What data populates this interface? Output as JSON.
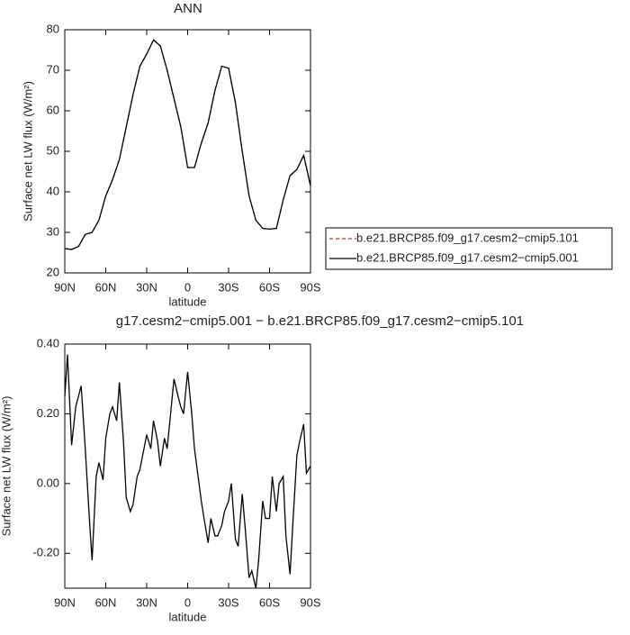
{
  "chart_data": [
    {
      "type": "line",
      "title": "ANN",
      "xlabel": "latitude",
      "ylabel": "Surface net LW flux (W/m²)",
      "x": [
        90,
        85,
        80,
        75,
        70,
        65,
        60,
        55,
        50,
        45,
        40,
        35,
        30,
        25,
        20,
        15,
        10,
        5,
        0,
        -5,
        -10,
        -15,
        -20,
        -25,
        -30,
        -35,
        -40,
        -45,
        -50,
        -55,
        -60,
        -65,
        -70,
        -75,
        -80,
        -85,
        -90
      ],
      "series": [
        {
          "name": "b.e21.BRCP85.f09_g17.cesm2−cmip5.101",
          "color": "#e02020",
          "linestyle": "dashed",
          "values": [
            26,
            25.8,
            26.5,
            29.5,
            30,
            33,
            39,
            43,
            48,
            56,
            64,
            71,
            74,
            77.5,
            76,
            70,
            63,
            56,
            46,
            46,
            52,
            57,
            65,
            71,
            70.5,
            62,
            50,
            39,
            33,
            31,
            30.8,
            31,
            38,
            44,
            45.5,
            49,
            41.5
          ]
        },
        {
          "name": "b.e21.BRCP85.f09_g17.cesm2−cmip5.001",
          "color": "#000000",
          "linestyle": "solid",
          "values": [
            26,
            25.8,
            26.5,
            29.5,
            30,
            33,
            39,
            43,
            48,
            56,
            64,
            71,
            74,
            77.5,
            76,
            70,
            63,
            56,
            46,
            46,
            52,
            57,
            65,
            71,
            70.5,
            62,
            50,
            39,
            33,
            31,
            30.8,
            31,
            38,
            44,
            45.5,
            49,
            41.5
          ]
        }
      ],
      "xlim": [
        90,
        -90
      ],
      "xticks": [
        {
          "value": 90,
          "label": "90N"
        },
        {
          "value": 60,
          "label": "60N"
        },
        {
          "value": 30,
          "label": "30N"
        },
        0,
        {
          "value": -30,
          "label": "30S"
        },
        {
          "value": -60,
          "label": "60S"
        },
        {
          "value": -90,
          "label": "90S"
        }
      ],
      "ylim": [
        20,
        80
      ],
      "yticks": [
        20,
        30,
        40,
        50,
        60,
        70,
        80
      ]
    },
    {
      "type": "line",
      "title": "g17.cesm2−cmip5.001 − b.e21.BRCP85.f09_g17.cesm2−cmip5.101",
      "xlabel": "latitude",
      "ylabel": "Surface net LW flux (W/m²)",
      "x": [
        90,
        88,
        85,
        82,
        78,
        75,
        72,
        70,
        67,
        65,
        62,
        60,
        57,
        55,
        52,
        50,
        47,
        45,
        42,
        40,
        37,
        35,
        32,
        30,
        27,
        25,
        22,
        20,
        17,
        15,
        12,
        10,
        7,
        5,
        3,
        0,
        -3,
        -5,
        -10,
        -12,
        -15,
        -17,
        -20,
        -22,
        -25,
        -27,
        -30,
        -32,
        -35,
        -37,
        -40,
        -42,
        -45,
        -47,
        -50,
        -52,
        -55,
        -57,
        -60,
        -62,
        -65,
        -67,
        -70,
        -72,
        -75,
        -77,
        -80,
        -82,
        -85,
        -87,
        -90
      ],
      "series": [
        {
          "color": "#000000",
          "linestyle": "solid",
          "values": [
            0.25,
            0.37,
            0.11,
            0.22,
            0.28,
            0.1,
            -0.1,
            -0.22,
            0.02,
            0.06,
            0.01,
            0.13,
            0.2,
            0.22,
            0.18,
            0.29,
            0.12,
            -0.04,
            -0.08,
            -0.06,
            0.02,
            0.04,
            0.1,
            0.14,
            0.1,
            0.18,
            0.12,
            0.05,
            0.13,
            0.1,
            0.22,
            0.3,
            0.25,
            0.22,
            0.2,
            0.32,
            0.2,
            0.1,
            -0.05,
            -0.1,
            -0.17,
            -0.1,
            -0.15,
            -0.15,
            -0.12,
            -0.08,
            -0.05,
            0.0,
            -0.16,
            -0.18,
            -0.03,
            -0.12,
            -0.27,
            -0.25,
            -0.3,
            -0.22,
            -0.05,
            -0.1,
            -0.1,
            0.02,
            -0.08,
            0.0,
            0.02,
            -0.15,
            -0.26,
            -0.12,
            0.08,
            0.12,
            0.17,
            0.03,
            0.05
          ]
        }
      ],
      "xlim": [
        90,
        -90
      ],
      "xticks": [
        {
          "value": 90,
          "label": "90N"
        },
        {
          "value": 60,
          "label": "60N"
        },
        {
          "value": 30,
          "label": "30N"
        },
        0,
        {
          "value": -30,
          "label": "30S"
        },
        {
          "value": -60,
          "label": "60S"
        },
        {
          "value": -90,
          "label": "90S"
        }
      ],
      "ylim": [
        -0.3,
        0.4
      ],
      "yticks": [
        {
          "value": -0.2,
          "label": "-0.20"
        },
        {
          "value": 0,
          "label": "0.00"
        },
        {
          "value": 0.2,
          "label": "0.20"
        },
        {
          "value": 0.4,
          "label": "0.40"
        }
      ]
    }
  ]
}
